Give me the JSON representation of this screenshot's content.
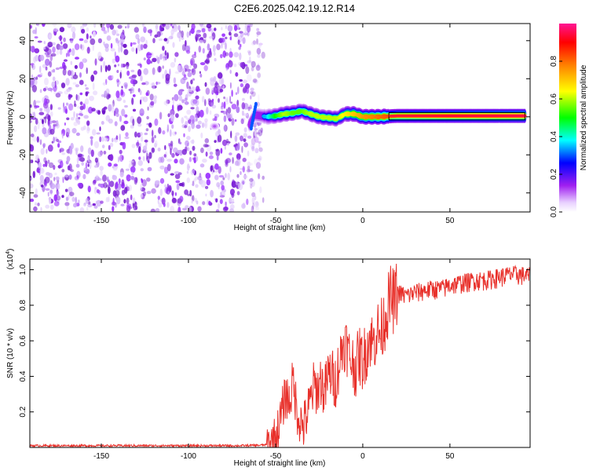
{
  "title": "C2E6.2025.042.19.12.R14",
  "chart_data": [
    {
      "type": "heatmap",
      "xlabel": "Height of straight line (km)",
      "ylabel": "Frequency (Hz)",
      "xlim": [
        -191,
        96
      ],
      "ylim": [
        -50,
        49
      ],
      "x_ticks": [
        -150,
        -100,
        -50,
        0,
        50
      ],
      "y_ticks": [
        -40,
        -20,
        0,
        20,
        40
      ],
      "colorbar": {
        "label": "Normalized spectral amplitude",
        "range": [
          0,
          1
        ],
        "ticks": [
          0.0,
          0.2,
          0.4,
          0.6,
          0.8
        ],
        "tick_labels": [
          "0.0",
          "0.2",
          "0.4",
          "0.6",
          "0.8"
        ],
        "colors": [
          "#ffffff",
          "#a020f0",
          "#0000ff",
          "#00ffff",
          "#00ff00",
          "#ffff00",
          "#ff8000",
          "#ff0000",
          "#ff1493"
        ]
      },
      "noise_region": {
        "x_from": -191,
        "x_to": -57,
        "level": 0.1
      },
      "signal_track": [
        {
          "x": -65,
          "y": -4,
          "amp": 0.3
        },
        {
          "x": -62,
          "y": 1,
          "amp": 0.3
        },
        {
          "x": -55,
          "y": 0,
          "amp": 0.35
        },
        {
          "x": -50,
          "y": 0.5,
          "amp": 0.5
        },
        {
          "x": -45,
          "y": 1.5,
          "amp": 0.6
        },
        {
          "x": -40,
          "y": 2,
          "amp": 0.55
        },
        {
          "x": -35,
          "y": 3,
          "amp": 0.55
        },
        {
          "x": -30,
          "y": 1.5,
          "amp": 0.6
        },
        {
          "x": -25,
          "y": 0,
          "amp": 0.6
        },
        {
          "x": -15,
          "y": -1,
          "amp": 0.6
        },
        {
          "x": -10,
          "y": 1.5,
          "amp": 0.65
        },
        {
          "x": -5,
          "y": 1.5,
          "amp": 0.7
        },
        {
          "x": 0,
          "y": 0,
          "amp": 0.75
        },
        {
          "x": 10,
          "y": 0,
          "amp": 0.8
        },
        {
          "x": 20,
          "y": 0.5,
          "amp": 0.85
        },
        {
          "x": 50,
          "y": 0.5,
          "amp": 0.9
        },
        {
          "x": 93,
          "y": 0.5,
          "amp": 0.95
        }
      ],
      "isolated_blobs": [
        {
          "x": -85,
          "y": -5,
          "amp": 0.3
        }
      ]
    },
    {
      "type": "line",
      "xlabel": "Height of straight line (km)",
      "ylabel": "SNR (10 * v/v)",
      "multiplier": "(x10⁴)",
      "multiplier_base": "(x10",
      "multiplier_exp": "4",
      "multiplier_close": ")",
      "xlim": [
        -191,
        96
      ],
      "ylim": [
        0,
        1.06
      ],
      "x_ticks": [
        -150,
        -100,
        -50,
        0,
        50
      ],
      "y_ticks": [
        0.2,
        0.4,
        0.6,
        0.8,
        1.0
      ],
      "y_tick_labels": [
        "0.2",
        "0.4",
        "0.6",
        "0.8",
        "1.0"
      ],
      "color": "#e8302a",
      "series": [
        {
          "x": [
            -191,
            -170,
            -150,
            -130,
            -110,
            -90,
            -70,
            -60,
            -55,
            -52,
            -50,
            -48,
            -46,
            -44,
            -42,
            -40,
            -38,
            -36,
            -34,
            -32,
            -30,
            -28,
            -26,
            -24,
            -22,
            -20,
            -18,
            -16,
            -14,
            -12,
            -10,
            -8,
            -6,
            -4,
            -2,
            0,
            2,
            4,
            6,
            8,
            10,
            12,
            14,
            16,
            18,
            20,
            25,
            30,
            35,
            40,
            45,
            50,
            55,
            60,
            65,
            70,
            75,
            80,
            85,
            90,
            96
          ],
          "y": [
            0.01,
            0.01,
            0.01,
            0.01,
            0.01,
            0.01,
            0.01,
            0.012,
            0.015,
            0.03,
            0.06,
            0.12,
            0.22,
            0.3,
            0.25,
            0.38,
            0.22,
            0.15,
            0.12,
            0.18,
            0.26,
            0.35,
            0.32,
            0.38,
            0.3,
            0.4,
            0.42,
            0.36,
            0.45,
            0.55,
            0.6,
            0.52,
            0.48,
            0.45,
            0.52,
            0.48,
            0.55,
            0.62,
            0.58,
            0.66,
            0.64,
            0.7,
            0.78,
            0.84,
            0.82,
            0.88,
            0.86,
            0.88,
            0.89,
            0.9,
            0.9,
            0.92,
            0.93,
            0.94,
            0.95,
            0.95,
            0.96,
            0.97,
            0.98,
            0.98,
            0.97
          ]
        }
      ]
    }
  ]
}
